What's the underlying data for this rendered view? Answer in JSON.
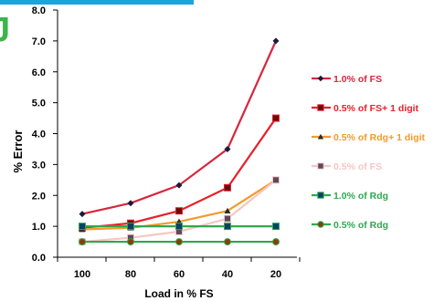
{
  "chart_data": {
    "type": "line",
    "title": "",
    "xlabel": "Load in % FS",
    "ylabel": "% Error",
    "categories": [
      "100",
      "80",
      "60",
      "40",
      "20"
    ],
    "ylim": [
      0,
      8
    ],
    "yticks": [
      "0.0",
      "1.0",
      "2.0",
      "3.0",
      "4.0",
      "5.0",
      "6.0",
      "7.0",
      "8.0"
    ],
    "grid": false,
    "legend_position": "right",
    "series": [
      {
        "name": "1.0% of FS",
        "values": [
          1.4,
          1.75,
          2.33,
          3.5,
          7.0
        ],
        "color": "#d7263d",
        "marker": "diamond",
        "marker_color": "#1a1a3a",
        "text_color": "#d7263d"
      },
      {
        "name": "0.5% of FS+ 1 digit",
        "values": [
          0.95,
          1.1,
          1.5,
          2.25,
          4.5
        ],
        "color": "#e8212b",
        "marker": "square",
        "marker_color": "#6b0d0d",
        "text_color": "#e8212b"
      },
      {
        "name": "0.5% of Rdg+ 1 digit",
        "values": [
          0.9,
          0.95,
          1.15,
          1.5,
          2.5
        ],
        "color": "#f39a2a",
        "marker": "triangle",
        "marker_color": "#2b2b2b",
        "text_color": "#f39a2a"
      },
      {
        "name": "0.5% of FS",
        "values": [
          0.5,
          0.63,
          0.83,
          1.25,
          2.5
        ],
        "color": "#f5c6c2",
        "marker": "square",
        "marker_color": "#5a4a5a",
        "text_color": "#f5c6c2"
      },
      {
        "name": "1.0% of Rdg",
        "values": [
          1.0,
          1.0,
          1.0,
          1.0,
          1.0
        ],
        "color": "#2fa84f",
        "marker": "square",
        "marker_color": "#0c3f66",
        "text_color": "#2fa84f"
      },
      {
        "name": "0.5% of Rdg",
        "values": [
          0.5,
          0.5,
          0.5,
          0.5,
          0.5
        ],
        "color": "#2fa84f",
        "marker": "circle",
        "marker_color": "#8a3d07",
        "text_color": "#2fa84f"
      }
    ]
  }
}
